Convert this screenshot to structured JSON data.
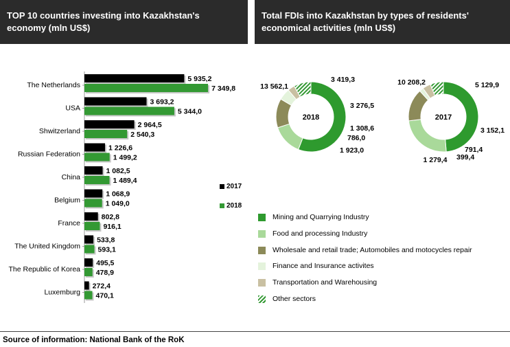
{
  "headers": {
    "left_title": "TOP 10 countries investing into Kazakhstan's economy (mln US$)",
    "right_title": "Total FDIs into Kazakhstan by types of residents' economical activities (mln US$)"
  },
  "colors": {
    "c2017": "#000000",
    "c2018": "#339933",
    "mining": "#2e9a2e",
    "food": "#a9d99a",
    "wholesale": "#8c8a59",
    "finance": "#e4f3dc",
    "transport": "#c9c0a2",
    "other": "#339933"
  },
  "chart_data": [
    {
      "type": "bar",
      "orientation": "horizontal",
      "categories": [
        "The Netherlands",
        "USA",
        "Shwitzerland",
        "Russian Federation",
        "China",
        "Belgium",
        "France",
        "The United Kingdom",
        "The Republic of Korea",
        "Luxemburg"
      ],
      "series": [
        {
          "name": "2017",
          "values": [
            5935.2,
            3693.2,
            2964.5,
            1226.6,
            1082.5,
            1068.9,
            802.8,
            533.8,
            495.5,
            272.4
          ],
          "labels": [
            "5 935,2",
            "3 693,2",
            "2 964,5",
            "1 226,6",
            "1 082,5",
            "1 068,9",
            "802,8",
            "533,8",
            "495,5",
            "272,4"
          ]
        },
        {
          "name": "2018",
          "values": [
            7349.8,
            5344.0,
            2540.3,
            1499.2,
            1489.4,
            1049.0,
            916.1,
            593.1,
            478.9,
            470.1
          ],
          "labels": [
            "7 349,8",
            "5 344,0",
            "2 540,3",
            "1 499,2",
            "1 489,4",
            "1 049,0",
            "916,1",
            "593,1",
            "478,9",
            "470,1"
          ]
        }
      ],
      "legend_position": "right",
      "legend": [
        "2017",
        "2018"
      ]
    },
    {
      "type": "pie",
      "variant": "donut",
      "center_label": "2018",
      "categories": [
        "Mining and Quarrying Industry",
        "Food and processing Industry",
        "Wholesale and retail trade; Automobiles and motocycles repair",
        "Finance and Insurance activites",
        "Transportation and Warehousing",
        "Other sectors"
      ],
      "values": [
        13562.1,
        3419.3,
        3276.5,
        1308.6,
        786.0,
        1923.0
      ],
      "labels": [
        "13 562,1",
        "3 419,3",
        "3 276,5",
        "1 308,6",
        "786,0",
        "1 923,0"
      ]
    },
    {
      "type": "pie",
      "variant": "donut",
      "center_label": "2017",
      "categories": [
        "Mining and Quarrying Industry",
        "Food and processing Industry",
        "Wholesale and retail trade; Automobiles and motocycles repair",
        "Finance and Insurance activites",
        "Transportation and Warehousing",
        "Other sectors"
      ],
      "values": [
        10208.2,
        5129.9,
        3152.1,
        399.4,
        791.4,
        1279.4
      ],
      "labels": [
        "10 208,2",
        "5 129,9",
        "3 152,1",
        "399,4",
        "791,4",
        "1 279,4"
      ]
    }
  ],
  "sector_legend": [
    {
      "label": "Mining and Quarrying Industry",
      "color_key": "mining"
    },
    {
      "label": "Food and processing Industry",
      "color_key": "food"
    },
    {
      "label": "Wholesale and retail trade; Automobiles and motocycles repair",
      "color_key": "wholesale"
    },
    {
      "label": "Finance and Insurance activites",
      "color_key": "finance"
    },
    {
      "label": "Transportation and Warehousing",
      "color_key": "transport"
    },
    {
      "label": "Other sectors",
      "color_key": "other",
      "pattern": "hatched"
    }
  ],
  "source": "Source of information: National Bank of the RoK"
}
